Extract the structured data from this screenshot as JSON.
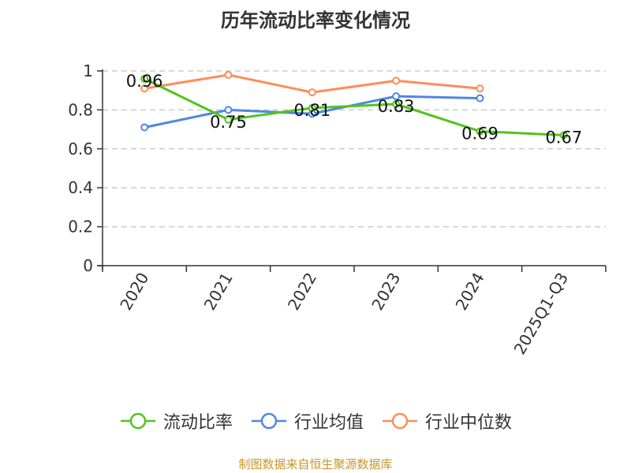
{
  "title": "历年流动比率变化情况",
  "footer": "制图数据来自恒生聚源数据库",
  "colors": {
    "current_ratio": "#52c41a",
    "industry_avg": "#4e86e5",
    "industry_median": "#ff8c5a",
    "axis": "#333333",
    "grid": "#cccccc",
    "footer": "#c8952c"
  },
  "legend": [
    {
      "label": "流动比率",
      "color": "#52c41a"
    },
    {
      "label": "行业均值",
      "color": "#4e86e5"
    },
    {
      "label": "行业中位数",
      "color": "#ff8c5a"
    }
  ],
  "chart_data": {
    "type": "line",
    "title": "历年流动比率变化情况",
    "xlabel": "",
    "ylabel": "",
    "categories": [
      "2020",
      "2021",
      "2022",
      "2023",
      "2024",
      "2025Q1-Q3"
    ],
    "ylim": [
      0,
      1
    ],
    "yticks": [
      "0",
      "0.2",
      "0.4",
      "0.6",
      "0.8",
      "1"
    ],
    "grid": true,
    "legend_position": "bottom",
    "series": [
      {
        "name": "流动比率",
        "values": [
          0.96,
          0.75,
          0.81,
          0.83,
          0.69,
          0.67
        ],
        "labels": [
          "0.96",
          "0.75",
          "0.81",
          "0.83",
          "0.69",
          "0.67"
        ],
        "color": "#52c41a"
      },
      {
        "name": "行业均值",
        "values": [
          0.71,
          0.8,
          0.78,
          0.87,
          0.86,
          null
        ],
        "color": "#4e86e5"
      },
      {
        "name": "行业中位数",
        "values": [
          0.91,
          0.98,
          0.89,
          0.95,
          0.91,
          null
        ],
        "color": "#ff8c5a"
      }
    ]
  }
}
